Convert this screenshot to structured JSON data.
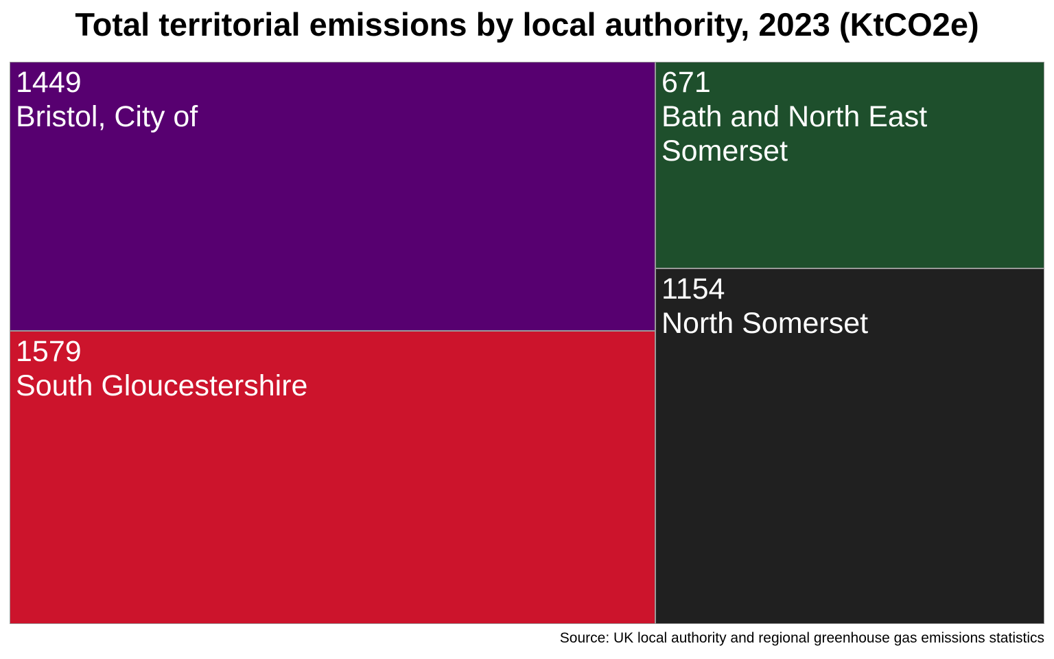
{
  "chart_data": {
    "type": "treemap",
    "title": "Total territorial emissions by local authority, 2023 (KtCO2e)",
    "source": "Source: UK local authority and regional greenhouse gas emissions statistics",
    "items": [
      {
        "label": "Bristol, City of",
        "value": 1449,
        "value_label": "1449",
        "color": "#570070"
      },
      {
        "label": "South Gloucestershire",
        "value": 1579,
        "value_label": "1579",
        "color": "#cc142c"
      },
      {
        "label": "Bath and North East Somerset",
        "value": 671,
        "value_label": "671",
        "color": "#1e4f2c"
      },
      {
        "label": "North Somerset",
        "value": 1154,
        "value_label": "1154",
        "color": "#202020"
      }
    ]
  }
}
